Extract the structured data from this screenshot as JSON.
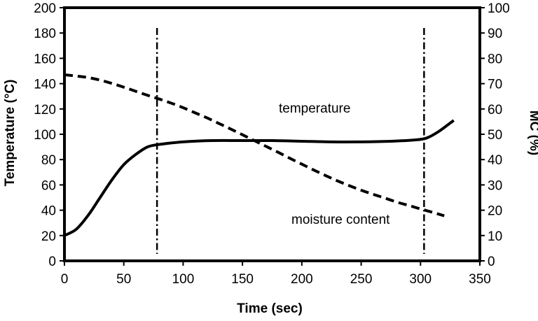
{
  "chart_data": {
    "type": "line",
    "title": "",
    "xlabel": "Time (sec)",
    "ylabel": "Temperature (°C)",
    "y2label": "MC (%)",
    "xlim": [
      0,
      350
    ],
    "ylim": [
      0,
      200
    ],
    "y2lim": [
      0,
      100
    ],
    "xticks": [
      0,
      50,
      100,
      150,
      200,
      250,
      300,
      350
    ],
    "yticks": [
      0,
      20,
      40,
      60,
      80,
      100,
      120,
      140,
      160,
      180,
      200
    ],
    "y2ticks": [
      0,
      10,
      20,
      30,
      40,
      50,
      60,
      70,
      80,
      90,
      100
    ],
    "grid": false,
    "legend": "none",
    "vertical_lines": [
      78,
      303
    ],
    "series": [
      {
        "axis": "left",
        "style": "solid",
        "x": [
          0,
          10,
          20,
          30,
          40,
          50,
          60,
          70,
          80,
          100,
          125,
          150,
          175,
          200,
          225,
          250,
          275,
          295,
          305,
          315,
          328
        ],
        "y": [
          20,
          25,
          36,
          50,
          64,
          76,
          84,
          90,
          92,
          94,
          95,
          95,
          95,
          94.5,
          94,
          94,
          94.5,
          95.5,
          97,
          102,
          111
        ]
      },
      {
        "axis": "right",
        "style": "dashed",
        "x": [
          0,
          10,
          20,
          30,
          40,
          50,
          60,
          70,
          80,
          90,
          100,
          110,
          120,
          130,
          140,
          150,
          160,
          170,
          180,
          190,
          200,
          210,
          220,
          230,
          240,
          250,
          260,
          270,
          280,
          290,
          300,
          310,
          320
        ],
        "y": [
          73.5,
          73,
          72.4,
          71.4,
          70.1,
          68.6,
          67,
          65.4,
          63.9,
          62.3,
          60.5,
          58.5,
          56.5,
          54.3,
          52.1,
          49.8,
          47.5,
          45.2,
          42.9,
          40.5,
          38.2,
          35.9,
          33.7,
          31.6,
          29.7,
          27.9,
          26.3,
          24.8,
          23.2,
          21.9,
          20.5,
          19.2,
          17.8
        ]
      }
    ],
    "annotations": [
      "temperature",
      "moisture content"
    ]
  }
}
